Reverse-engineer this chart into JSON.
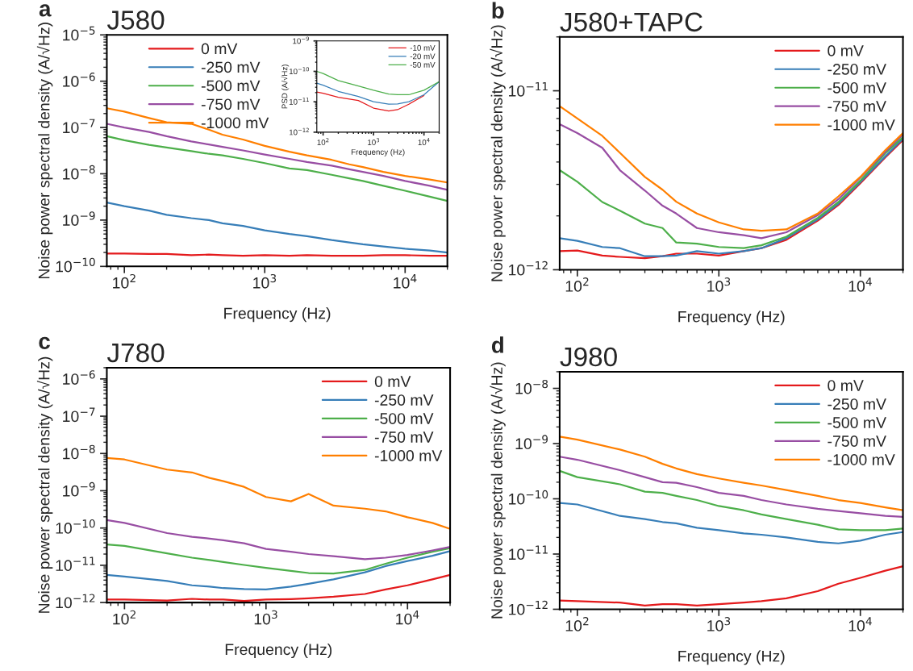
{
  "chart_data": [
    {
      "type": "line",
      "title": "J580",
      "annotations": [
        "a"
      ],
      "xlabel": "Frequency (Hz)",
      "ylabel": "Noise power spectral density (A/√Hz)",
      "log": "xy",
      "legend": "top",
      "xlim": [
        75,
        20000
      ],
      "ylim": [
        1e-10,
        1e-05
      ],
      "xticks": [
        {
          "value": 100,
          "label": "10$^{2}$"
        },
        {
          "value": 1000,
          "label": "10$^{3}$"
        },
        {
          "value": 10000,
          "label": "10$^{4}$"
        }
      ],
      "yticks": [
        {
          "value": 1e-10,
          "label": "10$^{−10}$"
        },
        {
          "value": 1e-09,
          "label": "10$^{−9}$"
        },
        {
          "value": 1e-08,
          "label": "10$^{−8}$"
        },
        {
          "value": 1e-07,
          "label": "10$^{−7}$"
        },
        {
          "value": 1e-06,
          "label": "10$^{−6}$"
        },
        {
          "value": 1e-05,
          "label": "10$^{−5}$"
        }
      ],
      "x": [
        75,
        100,
        150,
        200,
        300,
        400,
        500,
        700,
        1000,
        1500,
        2000,
        3000,
        4000,
        5000,
        7000,
        10000,
        15000,
        20000
      ],
      "series": [
        {
          "name": "0 mV",
          "color": "#e41a1c",
          "values": [
            1.9e-10,
            1.9e-10,
            1.85e-10,
            1.85e-10,
            1.75e-10,
            1.8e-10,
            1.75e-10,
            1.7e-10,
            1.75e-10,
            1.7e-10,
            1.75e-10,
            1.7e-10,
            1.7e-10,
            1.7e-10,
            1.75e-10,
            1.75e-10,
            1.7e-10,
            1.7e-10
          ]
        },
        {
          "name": "-250 mV",
          "color": "#377eb8",
          "values": [
            2.4e-09,
            2e-09,
            1.6e-09,
            1.3e-09,
            1.1e-09,
            1e-09,
            8.5e-10,
            7.5e-10,
            6e-10,
            5e-10,
            4.5e-10,
            3.7e-10,
            3.3e-10,
            3e-10,
            2.7e-10,
            2.4e-10,
            2.2e-10,
            2e-10
          ]
        },
        {
          "name": "-500 mV",
          "color": "#4daf4a",
          "values": [
            6.5e-08,
            5.3e-08,
            4.2e-08,
            3.7e-08,
            3.1e-08,
            2.7e-08,
            2.5e-08,
            2.1e-08,
            1.7e-08,
            1.3e-08,
            1.2e-08,
            9.5e-09,
            8e-09,
            7e-09,
            5.5e-09,
            4.3e-09,
            3.2e-09,
            2.6e-09
          ]
        },
        {
          "name": "-750 mV",
          "color": "#984ea3",
          "values": [
            1.2e-07,
            1e-07,
            8e-08,
            6.5e-08,
            5e-08,
            4.3e-08,
            3.8e-08,
            3.2e-08,
            2.6e-08,
            2.1e-08,
            1.8e-08,
            1.5e-08,
            1.25e-08,
            1.1e-08,
            9e-09,
            7e-09,
            5.5e-09,
            4.5e-09
          ]
        },
        {
          "name": "-1000 mV",
          "color": "#ff7f00",
          "values": [
            2.6e-07,
            2.2e-07,
            1.6e-07,
            1.3e-07,
            1.2e-07,
            9e-08,
            7e-08,
            5.5e-08,
            4e-08,
            3e-08,
            2.5e-08,
            2e-08,
            1.6e-08,
            1.4e-08,
            1.1e-08,
            9e-09,
            7.5e-09,
            6.5e-09
          ]
        }
      ]
    },
    {
      "type": "line",
      "xlabel": "Frequency (Hz)",
      "ylabel": "PSD (A/√Hz)",
      "log": "xy",
      "legend": "top right",
      "xlim": [
        75,
        20000
      ],
      "ylim": [
        1e-12,
        1e-09
      ],
      "xticks": [
        {
          "value": 100,
          "label": "10$^{2}$"
        },
        {
          "value": 1000,
          "label": "10$^{3}$"
        },
        {
          "value": 10000,
          "label": "10$^{4}$"
        }
      ],
      "yticks": [
        {
          "value": 1e-12,
          "label": "10$^{−12}$"
        },
        {
          "value": 1e-11,
          "label": "10$^{−11}$"
        },
        {
          "value": 1e-10,
          "label": "10$^{−10}$"
        },
        {
          "value": 1e-09,
          "label": "10$^{−9}$"
        }
      ],
      "x": [
        75,
        100,
        200,
        500,
        1000,
        2000,
        3000,
        5000,
        10000,
        20000
      ],
      "series": [
        {
          "name": "-10 mV",
          "color": "#e41a1c",
          "values": [
            2.1e-11,
            1.9e-11,
            1.4e-11,
            1.1e-11,
            6.2e-12,
            5e-12,
            5.5e-12,
            8.3e-12,
            1.6e-11,
            null
          ]
        },
        {
          "name": "-20 mV",
          "color": "#377eb8",
          "values": [
            4.1e-11,
            3.5e-11,
            2.2e-11,
            1.5e-11,
            1e-11,
            8.3e-12,
            8.5e-12,
            1e-11,
            1.7e-11,
            4.6e-11
          ]
        },
        {
          "name": "-50 mV",
          "color": "#4daf4a",
          "values": [
            1e-10,
            8.5e-11,
            5e-11,
            3.3e-11,
            2.4e-11,
            1.8e-11,
            1.7e-11,
            1.7e-11,
            2.4e-11,
            4.6e-11
          ]
        }
      ]
    },
    {
      "type": "line",
      "title": "J580+TAPC",
      "annotations": [
        "b"
      ],
      "xlabel": "Frequency (Hz)",
      "ylabel": "Noise power spectral density (A/√Hz)",
      "log": "xy",
      "legend": "top right",
      "xlim": [
        75,
        20000
      ],
      "ylim": [
        1e-12,
        2e-11
      ],
      "xticks": [
        {
          "value": 100,
          "label": "10$^{2}$"
        },
        {
          "value": 1000,
          "label": "10$^{3}$"
        },
        {
          "value": 10000,
          "label": "10$^{4}$"
        }
      ],
      "yticks": [
        {
          "value": 1e-12,
          "label": "10$^{−12}$"
        },
        {
          "value": 1e-11,
          "label": "10$^{−11}$"
        }
      ],
      "x": [
        75,
        100,
        150,
        200,
        300,
        400,
        500,
        700,
        1000,
        1500,
        2000,
        3000,
        5000,
        7000,
        10000,
        15000,
        20000
      ],
      "series": [
        {
          "name": "0 mV",
          "color": "#e41a1c",
          "values": [
            1.27e-12,
            1.28e-12,
            1.2e-12,
            1.18e-12,
            1.16e-12,
            1.19e-12,
            1.23e-12,
            1.23e-12,
            1.2e-12,
            1.27e-12,
            1.32e-12,
            1.47e-12,
            1.88e-12,
            2.3e-12,
            3.04e-12,
            4.24e-12,
            5.3e-12
          ]
        },
        {
          "name": "-250 mV",
          "color": "#377eb8",
          "values": [
            1.5e-12,
            1.45e-12,
            1.34e-12,
            1.32e-12,
            1.19e-12,
            1.19e-12,
            1.2e-12,
            1.27e-12,
            1.23e-12,
            1.27e-12,
            1.32e-12,
            1.5e-12,
            1.91e-12,
            2.34e-12,
            3.09e-12,
            4.3e-12,
            5.4e-12
          ]
        },
        {
          "name": "-500 mV",
          "color": "#4daf4a",
          "values": [
            3.6e-12,
            3.1e-12,
            2.39e-12,
            2.14e-12,
            1.81e-12,
            1.71e-12,
            1.42e-12,
            1.4e-12,
            1.34e-12,
            1.32e-12,
            1.37e-12,
            1.53e-12,
            1.95e-12,
            2.39e-12,
            3.15e-12,
            4.48e-12,
            5.5e-12
          ]
        },
        {
          "name": "-750 mV",
          "color": "#984ea3",
          "values": [
            6.5e-12,
            5.8e-12,
            4.8e-12,
            3.6e-12,
            2.77e-12,
            2.28e-12,
            2.06e-12,
            1.71e-12,
            1.62e-12,
            1.56e-12,
            1.5e-12,
            1.62e-12,
            2.02e-12,
            2.48e-12,
            3.27e-12,
            4.56e-12,
            5.7e-12
          ]
        },
        {
          "name": "-1000 mV",
          "color": "#ff7f00",
          "values": [
            8.2e-12,
            7e-12,
            5.6e-12,
            4.5e-12,
            3.3e-12,
            2.8e-12,
            2.4e-12,
            2.06e-12,
            1.84e-12,
            1.68e-12,
            1.65e-12,
            1.68e-12,
            2.06e-12,
            2.57e-12,
            3.3e-12,
            4.65e-12,
            5.8e-12
          ]
        }
      ]
    },
    {
      "type": "line",
      "title": "J780",
      "annotations": [
        "c"
      ],
      "xlabel": "Frequency (Hz)",
      "ylabel": "Noise power spectral density (A/√Hz)",
      "log": "xy",
      "legend": "top right",
      "xlim": [
        75,
        20000
      ],
      "ylim": [
        1e-12,
        2e-06
      ],
      "xticks": [
        {
          "value": 100,
          "label": "10$^{2}$"
        },
        {
          "value": 1000,
          "label": "10$^{3}$"
        },
        {
          "value": 10000,
          "label": "10$^{4}$"
        }
      ],
      "yticks": [
        {
          "value": 1e-12,
          "label": "10$^{−12}$"
        },
        {
          "value": 1e-11,
          "label": "10$^{−11}$"
        },
        {
          "value": 1e-10,
          "label": "10$^{−10}$"
        },
        {
          "value": 1e-09,
          "label": "10$^{−9}$"
        },
        {
          "value": 1e-08,
          "label": "10$^{−8}$"
        },
        {
          "value": 1e-07,
          "label": "10$^{−7}$"
        },
        {
          "value": 1e-06,
          "label": "10$^{−6}$"
        }
      ],
      "x": [
        75,
        100,
        200,
        300,
        400,
        500,
        700,
        1000,
        1500,
        2000,
        3000,
        5000,
        7000,
        10000,
        15000,
        20000
      ],
      "series": [
        {
          "name": "0 mV",
          "color": "#e41a1c",
          "values": [
            1.2e-12,
            1.2e-12,
            1.13e-12,
            1.26e-12,
            1.2e-12,
            1.2e-12,
            1.1e-12,
            1.2e-12,
            1.24e-12,
            1.3e-12,
            1.43e-12,
            1.7e-12,
            2.24e-12,
            2.9e-12,
            4.2e-12,
            5.5e-12
          ]
        },
        {
          "name": "-250 mV",
          "color": "#377eb8",
          "values": [
            5.5e-12,
            5e-12,
            3.8e-12,
            2.9e-12,
            2.67e-12,
            2.44e-12,
            2.3e-12,
            2.24e-12,
            2.67e-12,
            3.2e-12,
            4.2e-12,
            6.5e-12,
            9.5e-12,
            1.3e-11,
            1.8e-11,
            2.4e-11
          ]
        },
        {
          "name": "-500 mV",
          "color": "#4daf4a",
          "values": [
            3.6e-11,
            3.3e-11,
            2.1e-11,
            1.6e-11,
            1.38e-11,
            1.22e-11,
            1.02e-11,
            8.5e-12,
            7.1e-12,
            6.2e-12,
            6e-12,
            7.5e-12,
            1.1e-11,
            1.6e-11,
            2.3e-11,
            2.9e-11
          ]
        },
        {
          "name": "-750 mV",
          "color": "#984ea3",
          "values": [
            1.63e-10,
            1.37e-10,
            7.3e-11,
            5.8e-11,
            5.2e-11,
            4.7e-11,
            3.9e-11,
            2.74e-11,
            2.3e-11,
            2e-11,
            1.75e-11,
            1.46e-11,
            1.6e-11,
            1.9e-11,
            2.5e-11,
            3.1e-11
          ]
        },
        {
          "name": "-1000 mV",
          "color": "#ff7f00",
          "values": [
            7.6e-09,
            6.9e-09,
            3.7e-09,
            3.1e-09,
            2.2e-09,
            1.8e-09,
            1.27e-09,
            6.8e-10,
            5.2e-10,
            8.2e-10,
            4e-10,
            3.3e-10,
            2.8e-10,
            1.95e-10,
            1.37e-10,
            9.5e-11
          ]
        }
      ]
    },
    {
      "type": "line",
      "title": "J980",
      "annotations": [
        "d"
      ],
      "xlabel": "Frequency (Hz)",
      "ylabel": "Noise power spectral density (A/√Hz)",
      "log": "xy",
      "legend": "top right",
      "xlim": [
        75,
        20000
      ],
      "ylim": [
        1e-12,
        2e-08
      ],
      "xticks": [
        {
          "value": 100,
          "label": "10$^{2}$"
        },
        {
          "value": 1000,
          "label": "10$^{3}$"
        },
        {
          "value": 10000,
          "label": "10$^{4}$"
        }
      ],
      "yticks": [
        {
          "value": 1e-12,
          "label": "10$^{−12}$"
        },
        {
          "value": 1e-11,
          "label": "10$^{−11}$"
        },
        {
          "value": 1e-10,
          "label": "10$^{−10}$"
        },
        {
          "value": 1e-09,
          "label": "10$^{−9}$"
        },
        {
          "value": 1e-08,
          "label": "10$^{−8}$"
        }
      ],
      "x": [
        75,
        100,
        200,
        300,
        400,
        500,
        700,
        1000,
        1500,
        2000,
        3000,
        5000,
        7000,
        10000,
        15000,
        20000
      ],
      "series": [
        {
          "name": "0 mV",
          "color": "#e41a1c",
          "values": [
            1.44e-12,
            1.4e-12,
            1.32e-12,
            1.17e-12,
            1.24e-12,
            1.24e-12,
            1.17e-12,
            1.24e-12,
            1.32e-12,
            1.4e-12,
            1.58e-12,
            2.13e-12,
            2.9e-12,
            3.7e-12,
            5e-12,
            6e-12
          ]
        },
        {
          "name": "-250 mV",
          "color": "#377eb8",
          "values": [
            8.4e-11,
            7.9e-11,
            4.9e-11,
            4.3e-11,
            3.8e-11,
            3.6e-11,
            3e-11,
            2.7e-11,
            2.37e-11,
            2.24e-11,
            2e-11,
            1.66e-11,
            1.56e-11,
            1.75e-11,
            2.24e-11,
            2.5e-11
          ]
        },
        {
          "name": "-500 mV",
          "color": "#4daf4a",
          "values": [
            3.2e-10,
            2.47e-10,
            1.83e-10,
            1.35e-10,
            1.28e-10,
            1.13e-10,
            9.5e-11,
            7.4e-11,
            6.2e-11,
            5.2e-11,
            4.3e-11,
            3.4e-11,
            2.8e-11,
            2.7e-11,
            2.7e-11,
            2.9e-11
          ]
        },
        {
          "name": "-750 mV",
          "color": "#984ea3",
          "values": [
            5.8e-10,
            5.1e-10,
            3.3e-10,
            2.47e-10,
            2e-10,
            1.95e-10,
            1.63e-10,
            1.28e-10,
            1.13e-10,
            9.5e-11,
            7.9e-11,
            6.6e-11,
            6e-11,
            5.5e-11,
            4.9e-11,
            4.7e-11
          ]
        },
        {
          "name": "-1000 mV",
          "color": "#ff7f00",
          "values": [
            1.34e-09,
            1.18e-09,
            7.8e-10,
            5.8e-10,
            4.3e-10,
            3.55e-10,
            2.8e-10,
            2.34e-10,
            1.95e-10,
            1.74e-10,
            1.44e-10,
            1.13e-10,
            9.5e-11,
            8.4e-11,
            7e-11,
            6.2e-11
          ]
        }
      ]
    }
  ]
}
